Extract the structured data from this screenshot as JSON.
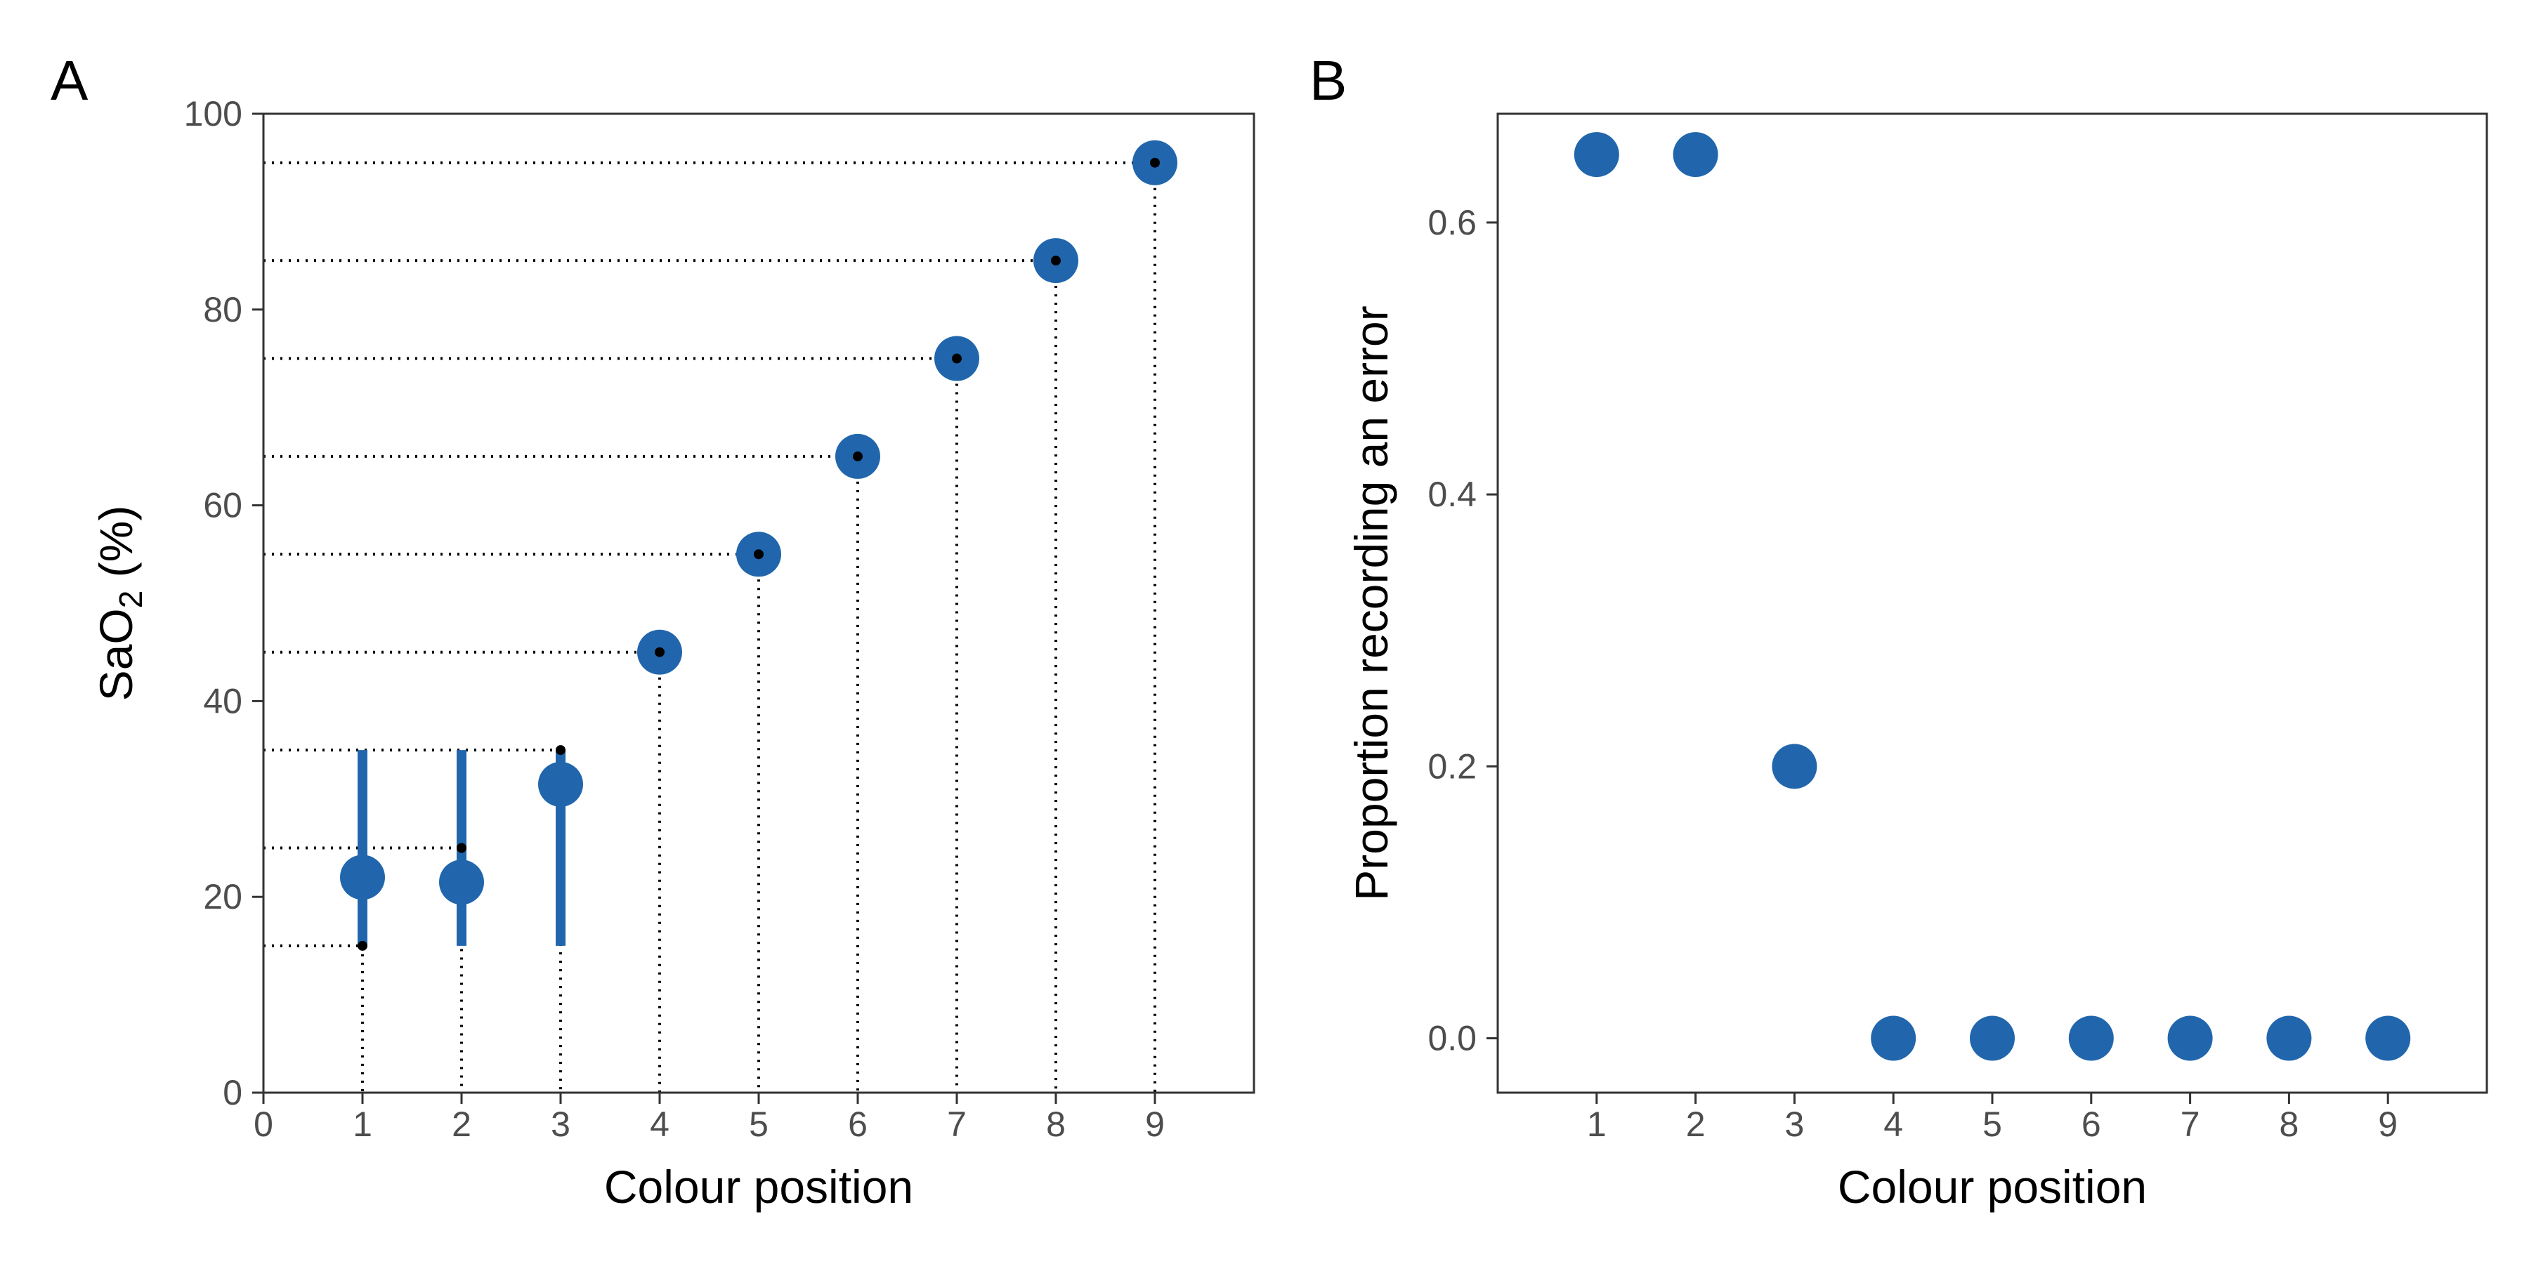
{
  "colors": {
    "marker": "#2166ac",
    "guide": "#000000",
    "axis": "#333333",
    "tick_text": "#4d4d4d"
  },
  "chart_data": [
    {
      "panel": "A",
      "type": "scatter",
      "xlabel": "Colour position",
      "ylabel_main": "SaO",
      "ylabel_sub": "2",
      "ylabel_unit": " (%)",
      "xlim": [
        0,
        10
      ],
      "ylim": [
        0,
        100
      ],
      "xticks": [
        0,
        1,
        2,
        3,
        4,
        5,
        6,
        7,
        8,
        9
      ],
      "yticks": [
        0,
        20,
        40,
        60,
        80,
        100
      ],
      "grid": false,
      "points": [
        {
          "x": 1,
          "mean": 22,
          "low": 15,
          "high": 35,
          "true": 15
        },
        {
          "x": 2,
          "mean": 21.5,
          "low": 15,
          "high": 35,
          "true": 25
        },
        {
          "x": 3,
          "mean": 31.5,
          "low": 15,
          "high": 35,
          "true": 35
        },
        {
          "x": 4,
          "mean": 45,
          "low": 45,
          "high": 45,
          "true": 45
        },
        {
          "x": 5,
          "mean": 55,
          "low": 55,
          "high": 55,
          "true": 55
        },
        {
          "x": 6,
          "mean": 65,
          "low": 65,
          "high": 65,
          "true": 65
        },
        {
          "x": 7,
          "mean": 75,
          "low": 75,
          "high": 75,
          "true": 75
        },
        {
          "x": 8,
          "mean": 85,
          "low": 85,
          "high": 85,
          "true": 85
        },
        {
          "x": 9,
          "mean": 95,
          "low": 95,
          "high": 95,
          "true": 95
        }
      ]
    },
    {
      "panel": "B",
      "type": "scatter",
      "xlabel": "Colour position",
      "ylabel": "Proportion recording an error",
      "xlim": [
        0,
        10
      ],
      "ylim": [
        -0.04,
        0.68
      ],
      "xticks": [
        1,
        2,
        3,
        4,
        5,
        6,
        7,
        8,
        9
      ],
      "yticks": [
        0.0,
        0.2,
        0.4,
        0.6
      ],
      "ytick_labels": [
        "0.0",
        "0.2",
        "0.4",
        "0.6"
      ],
      "grid": false,
      "x": [
        1,
        2,
        3,
        4,
        5,
        6,
        7,
        8,
        9
      ],
      "y": [
        0.65,
        0.65,
        0.2,
        0,
        0,
        0,
        0,
        0,
        0
      ]
    }
  ]
}
